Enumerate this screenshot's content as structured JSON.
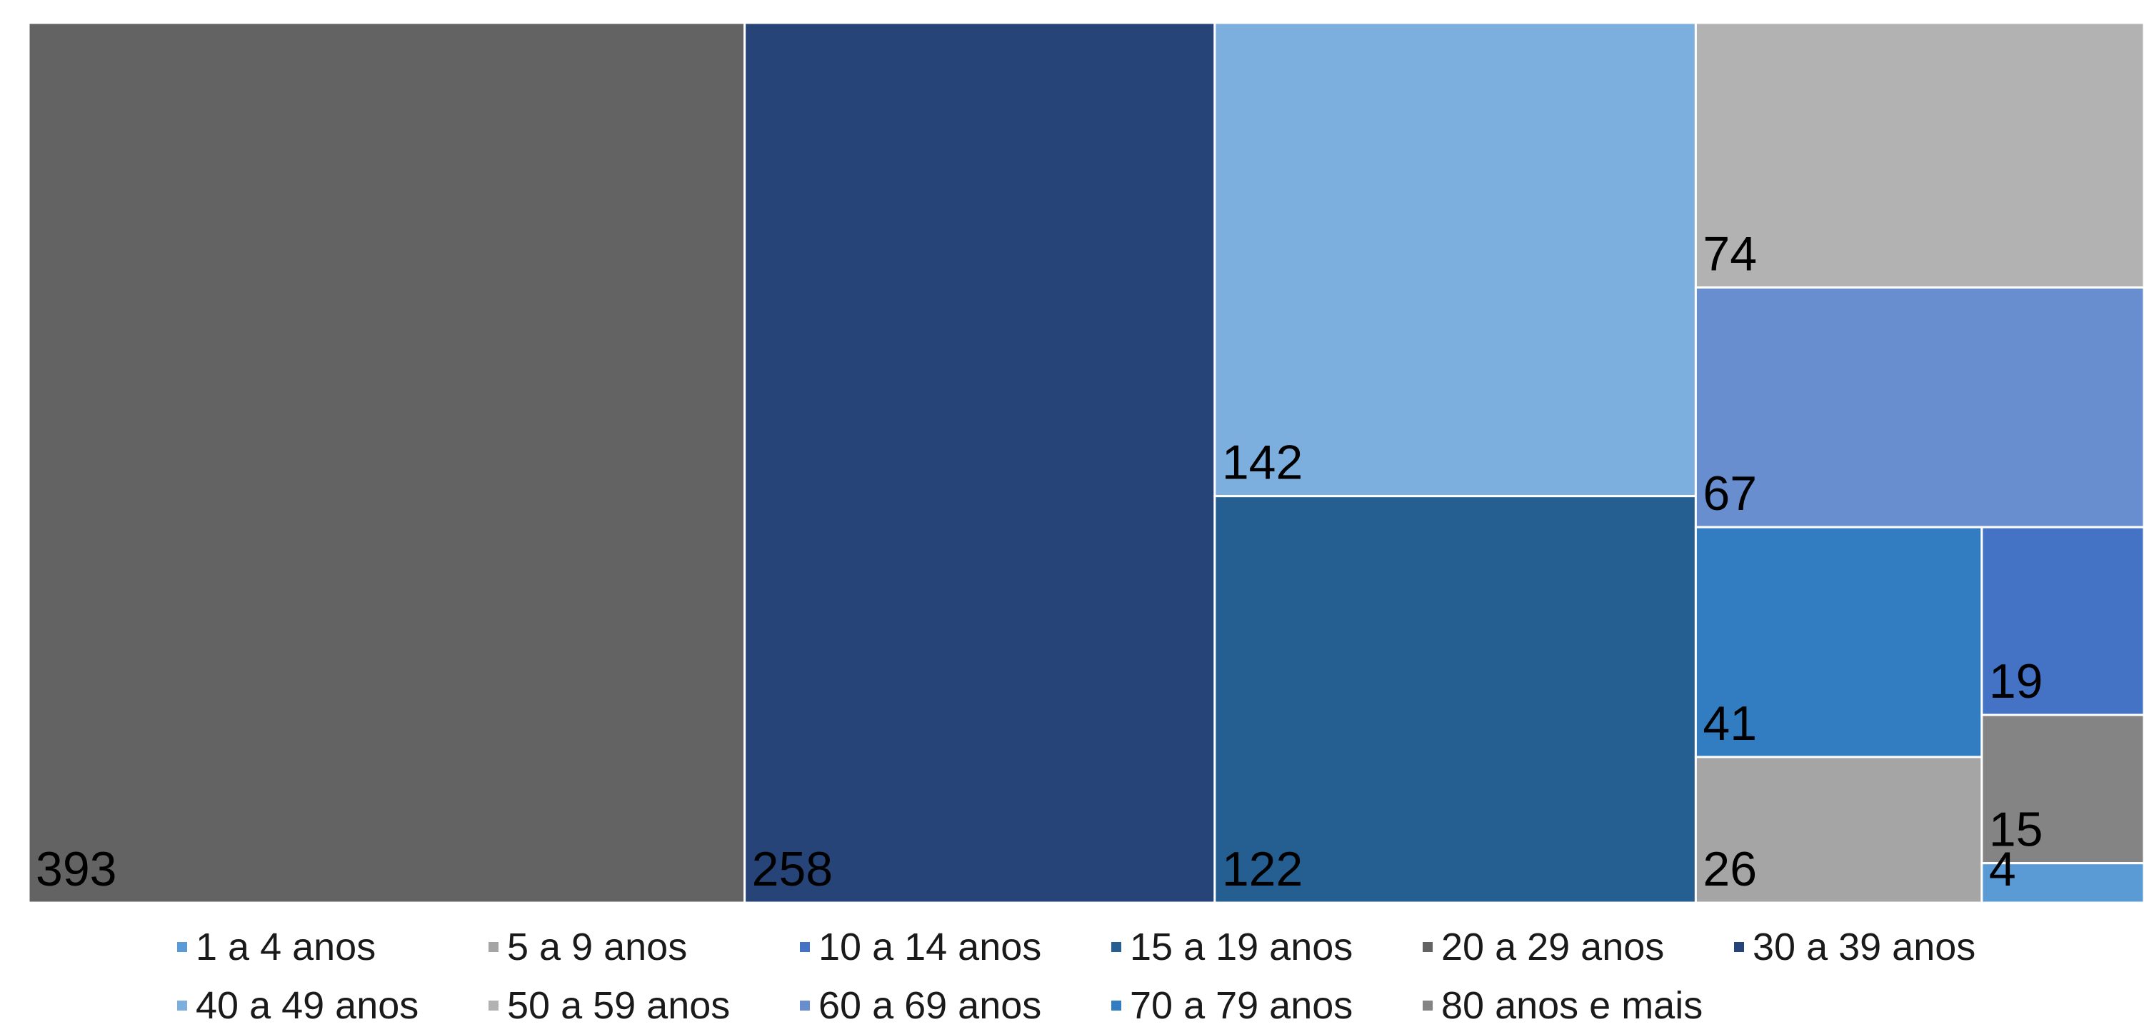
{
  "chart_data": {
    "type": "treemap",
    "title": "",
    "categories": [
      "1 a 4 anos",
      "5 a 9 anos",
      "10 a 14 anos",
      "15 a 19 anos",
      "20 a 29 anos",
      "30 a 39 anos",
      "40 a 49 anos",
      "50 a 59 anos",
      "60 a 69 anos",
      "70 a 79 anos",
      "80 anos e mais"
    ],
    "tiles": [
      {
        "category": "20 a 29 anos",
        "value": 393,
        "label": "393",
        "color": "#636363"
      },
      {
        "category": "30 a 39 anos",
        "value": 258,
        "label": "258",
        "color": "#264478"
      },
      {
        "category": "40 a 49 anos",
        "value": 142,
        "label": "142",
        "color": "#7CAFDD"
      },
      {
        "category": "15 a 19 anos",
        "value": 122,
        "label": "122",
        "color": "#255E91"
      },
      {
        "category": "50 a 59 anos",
        "value": 74,
        "label": "74",
        "color": "#B2B2B2"
      },
      {
        "category": "60 a 69 anos",
        "value": 67,
        "label": "67",
        "color": "#698ED0"
      },
      {
        "category": "70 a 79 anos",
        "value": 41,
        "label": "41",
        "color": "#327DC2"
      },
      {
        "category": "5 a 9 anos",
        "value": 26,
        "label": "26",
        "color": "#A5A5A5"
      },
      {
        "category": "10 a 14 anos",
        "value": 19,
        "label": "19",
        "color": "#4472C4"
      },
      {
        "category": "80 anos e mais",
        "value": 15,
        "label": "15",
        "color": "#848484"
      },
      {
        "category": "1 a 4 anos",
        "value": 4,
        "label": "4",
        "color": "#5B9BD5"
      }
    ],
    "legend": {
      "position": "bottom",
      "items": [
        {
          "label": "1 a 4 anos",
          "color": "#5B9BD5"
        },
        {
          "label": "5 a 9 anos",
          "color": "#A5A5A5"
        },
        {
          "label": "10 a 14 anos",
          "color": "#4472C4"
        },
        {
          "label": "15 a 19 anos",
          "color": "#255E91"
        },
        {
          "label": "20 a 29 anos",
          "color": "#636363"
        },
        {
          "label": "30 a 39 anos",
          "color": "#264478"
        },
        {
          "label": "40 a 49 anos",
          "color": "#7CAFDD"
        },
        {
          "label": "50 a 59 anos",
          "color": "#B2B2B2"
        },
        {
          "label": "60 a 69 anos",
          "color": "#698ED0"
        },
        {
          "label": "70 a 79 anos",
          "color": "#327DC2"
        },
        {
          "label": "80 anos e mais",
          "color": "#848484"
        }
      ]
    }
  }
}
